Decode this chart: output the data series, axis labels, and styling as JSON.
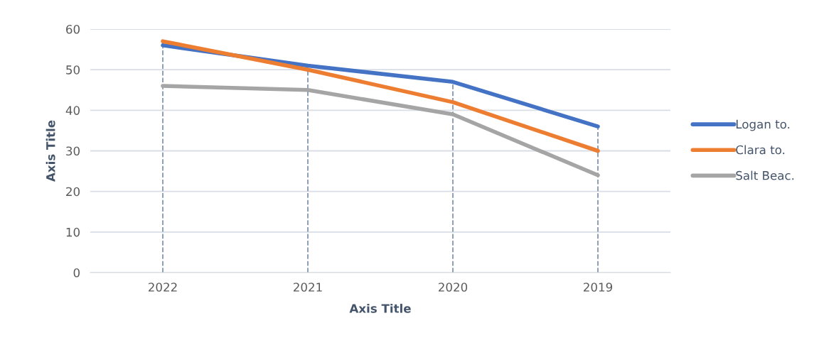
{
  "chart_data": {
    "type": "line",
    "xlabel": "Axis Title",
    "ylabel": "Axis Title",
    "categories": [
      "2022",
      "2021",
      "2020",
      "2019"
    ],
    "series": [
      {
        "name": "Logan to.",
        "color": "#4472c4",
        "values": [
          56,
          51,
          47,
          36
        ]
      },
      {
        "name": "Clara to.",
        "color": "#ed7d31",
        "values": [
          57,
          50,
          42,
          30
        ]
      },
      {
        "name": "Salt Beac.",
        "color": "#a5a5a5",
        "values": [
          46,
          45,
          39,
          24
        ]
      }
    ],
    "ylim": [
      0,
      60
    ],
    "yticks": [
      0,
      10,
      20,
      30,
      40,
      50,
      60
    ],
    "grid": "y",
    "legend": "right",
    "marker": "none",
    "line_style": "solid",
    "ref_lines": [
      {
        "axis": "x",
        "value": "2022",
        "color": "#8497b0",
        "line_style": "dashed"
      },
      {
        "axis": "x",
        "value": "2021",
        "color": "#8497b0",
        "line_style": "dashed"
      },
      {
        "axis": "x",
        "value": "2020",
        "color": "#8497b0",
        "line_style": "dashed"
      },
      {
        "axis": "x",
        "value": "2019",
        "color": "#8497b0",
        "line_style": "dashed"
      }
    ]
  }
}
